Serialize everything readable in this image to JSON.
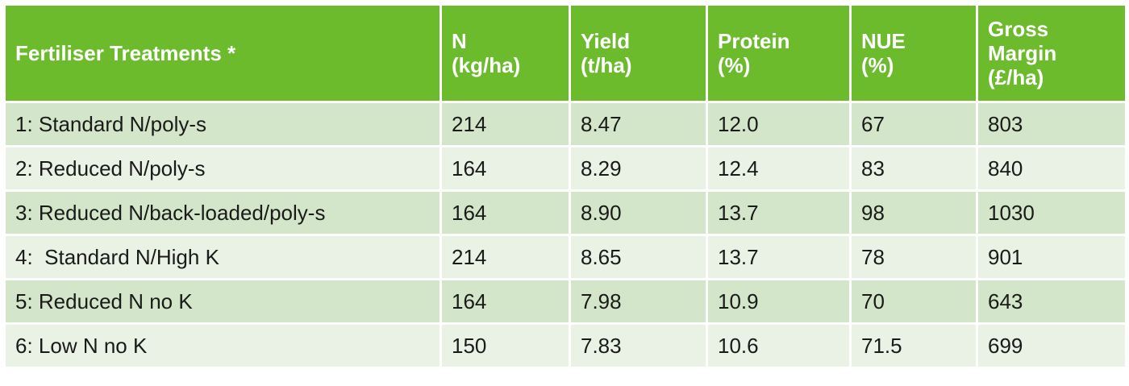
{
  "table": {
    "header": [
      [
        "Fertiliser Treatments *"
      ],
      [
        "N",
        "(kg/ha)"
      ],
      [
        "Yield",
        "(t/ha)"
      ],
      [
        "Protein",
        "(%)"
      ],
      [
        "NUE",
        "(%)"
      ],
      [
        "Gross",
        "Margin",
        "(£/ha)"
      ]
    ],
    "rows": [
      [
        "1: Standard N/poly-s",
        "214",
        "8.47",
        "12.0",
        "67",
        "803"
      ],
      [
        "2: Reduced N/poly-s",
        "164",
        "8.29",
        "12.4",
        "83",
        "840"
      ],
      [
        "3: Reduced N/back-loaded/poly-s",
        "164",
        "8.90",
        "13.7",
        "98",
        "1030"
      ],
      [
        "4:  Standard N/High K",
        "214",
        "8.65",
        "13.7",
        "78",
        "901"
      ],
      [
        "5: Reduced N no K",
        "164",
        "7.98",
        "10.9",
        "70",
        "643"
      ],
      [
        "6: Low N no K",
        "150",
        "7.83",
        "10.6",
        "71.5",
        "699"
      ]
    ]
  }
}
